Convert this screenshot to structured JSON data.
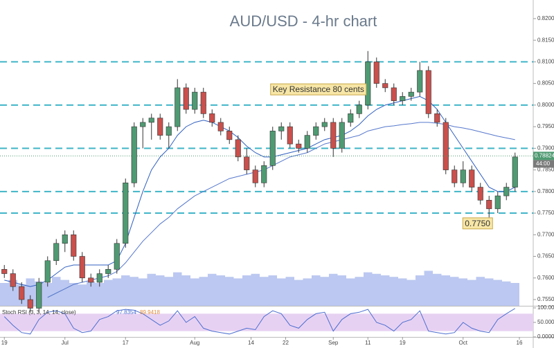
{
  "chart_data": {
    "type": "candlestick",
    "title": "AUD/USD - 4-hr chart",
    "candles": [
      [
        0.762,
        0.763,
        0.76,
        0.761
      ],
      [
        0.761,
        0.762,
        0.757,
        0.758
      ],
      [
        0.758,
        0.759,
        0.754,
        0.755
      ],
      [
        0.755,
        0.756,
        0.752,
        0.753
      ],
      [
        0.753,
        0.76,
        0.752,
        0.759
      ],
      [
        0.759,
        0.765,
        0.758,
        0.764
      ],
      [
        0.764,
        0.769,
        0.763,
        0.768
      ],
      [
        0.768,
        0.771,
        0.766,
        0.77
      ],
      [
        0.77,
        0.771,
        0.764,
        0.765
      ],
      [
        0.765,
        0.766,
        0.759,
        0.76
      ],
      [
        0.76,
        0.761,
        0.758,
        0.759
      ],
      [
        0.759,
        0.762,
        0.758,
        0.761
      ],
      [
        0.761,
        0.763,
        0.76,
        0.762
      ],
      [
        0.762,
        0.769,
        0.761,
        0.768
      ],
      [
        0.768,
        0.783,
        0.767,
        0.782
      ],
      [
        0.782,
        0.796,
        0.781,
        0.795
      ],
      [
        0.795,
        0.797,
        0.79,
        0.796
      ],
      [
        0.796,
        0.798,
        0.792,
        0.797
      ],
      [
        0.797,
        0.798,
        0.792,
        0.793
      ],
      [
        0.793,
        0.796,
        0.79,
        0.795
      ],
      [
        0.795,
        0.806,
        0.794,
        0.804
      ],
      [
        0.804,
        0.805,
        0.798,
        0.799
      ],
      [
        0.799,
        0.804,
        0.798,
        0.803
      ],
      [
        0.803,
        0.804,
        0.797,
        0.798
      ],
      [
        0.798,
        0.799,
        0.795,
        0.796
      ],
      [
        0.796,
        0.797,
        0.793,
        0.794
      ],
      [
        0.794,
        0.795,
        0.791,
        0.792
      ],
      [
        0.792,
        0.793,
        0.787,
        0.788
      ],
      [
        0.788,
        0.79,
        0.784,
        0.785
      ],
      [
        0.785,
        0.786,
        0.781,
        0.782
      ],
      [
        0.782,
        0.787,
        0.781,
        0.786
      ],
      [
        0.786,
        0.795,
        0.785,
        0.794
      ],
      [
        0.794,
        0.796,
        0.792,
        0.795
      ],
      [
        0.795,
        0.796,
        0.79,
        0.791
      ],
      [
        0.791,
        0.792,
        0.789,
        0.79
      ],
      [
        0.79,
        0.794,
        0.789,
        0.793
      ],
      [
        0.793,
        0.796,
        0.792,
        0.795
      ],
      [
        0.795,
        0.797,
        0.794,
        0.796
      ],
      [
        0.796,
        0.797,
        0.788,
        0.79
      ],
      [
        0.79,
        0.797,
        0.789,
        0.796
      ],
      [
        0.796,
        0.799,
        0.795,
        0.798
      ],
      [
        0.798,
        0.801,
        0.797,
        0.8
      ],
      [
        0.8,
        0.8125,
        0.799,
        0.81
      ],
      [
        0.81,
        0.811,
        0.804,
        0.805
      ],
      [
        0.805,
        0.806,
        0.803,
        0.804
      ],
      [
        0.804,
        0.805,
        0.8,
        0.801
      ],
      [
        0.801,
        0.803,
        0.8,
        0.802
      ],
      [
        0.802,
        0.804,
        0.801,
        0.803
      ],
      [
        0.803,
        0.81,
        0.802,
        0.808
      ],
      [
        0.808,
        0.809,
        0.797,
        0.798
      ],
      [
        0.798,
        0.799,
        0.795,
        0.796
      ],
      [
        0.796,
        0.797,
        0.784,
        0.785
      ],
      [
        0.785,
        0.786,
        0.781,
        0.782
      ],
      [
        0.782,
        0.787,
        0.781,
        0.785
      ],
      [
        0.785,
        0.786,
        0.78,
        0.781
      ],
      [
        0.781,
        0.782,
        0.777,
        0.778
      ],
      [
        0.778,
        0.779,
        0.774,
        0.776
      ],
      [
        0.776,
        0.78,
        0.775,
        0.779
      ],
      [
        0.779,
        0.782,
        0.778,
        0.781
      ],
      [
        0.781,
        0.789,
        0.78,
        0.788
      ]
    ],
    "up_color": "#4f9a72",
    "down_color": "#c9504c",
    "moving_averages": [
      {
        "color": "#2f5fbf",
        "values": [
          0.7595,
          0.759,
          0.7585,
          0.758,
          0.7585,
          0.7595,
          0.761,
          0.7625,
          0.763,
          0.763,
          0.763,
          0.763,
          0.763,
          0.764,
          0.768,
          0.774,
          0.78,
          0.785,
          0.788,
          0.79,
          0.793,
          0.795,
          0.796,
          0.7965,
          0.796,
          0.795,
          0.794,
          0.7925,
          0.7905,
          0.789,
          0.788,
          0.788,
          0.7885,
          0.789,
          0.7895,
          0.79,
          0.791,
          0.792,
          0.7925,
          0.793,
          0.794,
          0.7955,
          0.7975,
          0.799,
          0.8,
          0.8005,
          0.801,
          0.8015,
          0.802,
          0.801,
          0.799,
          0.796,
          0.793,
          0.79,
          0.787,
          0.784,
          0.781,
          0.78,
          0.78,
          0.781
        ]
      },
      {
        "color": "#5577cc",
        "values": [
          null,
          null,
          null,
          null,
          null,
          0.7555,
          0.7565,
          0.7575,
          0.7585,
          0.759,
          0.7595,
          0.76,
          0.7605,
          0.7615,
          0.7635,
          0.766,
          0.7685,
          0.7705,
          0.7725,
          0.774,
          0.776,
          0.7775,
          0.779,
          0.78,
          0.781,
          0.782,
          0.783,
          0.7835,
          0.784,
          0.7845,
          0.785,
          0.786,
          0.787,
          0.788,
          0.7885,
          0.789,
          0.79,
          0.791,
          0.7915,
          0.792,
          0.7925,
          0.793,
          0.794,
          0.7945,
          0.795,
          0.7952,
          0.7955,
          0.7957,
          0.796,
          0.796,
          0.7958,
          0.7955,
          0.795,
          0.7947,
          0.7943,
          0.7938,
          0.7933,
          0.7928,
          0.7924,
          0.792
        ]
      }
    ],
    "volume": [
      30,
      34,
      28,
      36,
      32,
      30,
      38,
      34,
      30,
      28,
      32,
      30,
      34,
      36,
      40,
      38,
      36,
      42,
      40,
      38,
      44,
      40,
      36,
      38,
      42,
      40,
      38,
      36,
      40,
      42,
      38,
      40,
      36,
      38,
      34,
      36,
      40,
      38,
      42,
      40,
      36,
      38,
      44,
      42,
      40,
      38,
      36,
      34,
      40,
      46,
      42,
      40,
      38,
      36,
      34,
      38,
      36,
      34,
      32,
      30
    ],
    "vlim": [
      0,
      100
    ],
    "volume_color": "#8fa3e8",
    "key_levels": [
      0.81,
      0.8,
      0.79,
      0.78,
      0.775
    ],
    "level_color": "#3fb5c8",
    "ylim": [
      0.75356,
      0.82431
    ],
    "yticks": [
      {
        "value": 0.82,
        "label": "0.82000"
      },
      {
        "value": 0.815,
        "label": "0.81500"
      },
      {
        "value": 0.81,
        "label": "0.81000"
      },
      {
        "value": 0.805,
        "label": "0.80500"
      },
      {
        "value": 0.8,
        "label": "0.80000"
      },
      {
        "value": 0.795,
        "label": "0.79500"
      },
      {
        "value": 0.79,
        "label": "0.79000"
      },
      {
        "value": 0.785,
        "label": "0.78500"
      },
      {
        "value": 0.78,
        "label": "0.78000"
      },
      {
        "value": 0.775,
        "label": "0.77500"
      },
      {
        "value": 0.77,
        "label": "0.77000"
      },
      {
        "value": 0.765,
        "label": "0.76500"
      },
      {
        "value": 0.76,
        "label": "0.76000"
      },
      {
        "value": 0.755,
        "label": "0.75500"
      }
    ],
    "xlim": [
      -0.5,
      61.1
    ],
    "xticks": [
      {
        "value": 0,
        "label": "19"
      },
      {
        "value": 7,
        "label": "Jul"
      },
      {
        "value": 14,
        "label": "17"
      },
      {
        "value": 22,
        "label": "Aug"
      },
      {
        "value": 28.5,
        "label": "14"
      },
      {
        "value": 32.5,
        "label": "22"
      },
      {
        "value": 38,
        "label": "Sep"
      },
      {
        "value": 42,
        "label": "11"
      },
      {
        "value": 46,
        "label": "19"
      },
      {
        "value": 53,
        "label": "Oct"
      },
      {
        "value": 59.5,
        "label": "16"
      }
    ],
    "price_tag": {
      "value": 0.78824,
      "label": "0.78824",
      "timer": "44:00"
    },
    "annotations": [
      {
        "text": "Key Resistance 80 cents",
        "x": 31,
        "y": 0.8035
      },
      {
        "text": "0.7750",
        "x": 53.2,
        "y": 0.7725
      }
    ],
    "rsi": {
      "label": "Stoch RSI (3, 3, 14, 14, close)",
      "k_label": "97.8354",
      "d_label": "89.9418",
      "color": "#4c6fd0",
      "d_color": "#e08a3c",
      "values": [
        70,
        40,
        15,
        10,
        60,
        85,
        90,
        80,
        30,
        15,
        20,
        60,
        70,
        90,
        95,
        92,
        80,
        60,
        40,
        55,
        90,
        50,
        70,
        30,
        20,
        15,
        10,
        20,
        30,
        25,
        70,
        90,
        80,
        40,
        30,
        60,
        80,
        85,
        20,
        60,
        80,
        85,
        95,
        50,
        40,
        20,
        50,
        60,
        90,
        20,
        15,
        10,
        15,
        50,
        30,
        20,
        15,
        60,
        80,
        98
      ],
      "ylim": [
        0,
        100
      ],
      "yticks": [
        {
          "value": 100,
          "label": "100.0000"
        },
        {
          "value": 50,
          "label": "50.0000"
        },
        {
          "value": 0,
          "label": "0.0000"
        }
      ]
    }
  }
}
